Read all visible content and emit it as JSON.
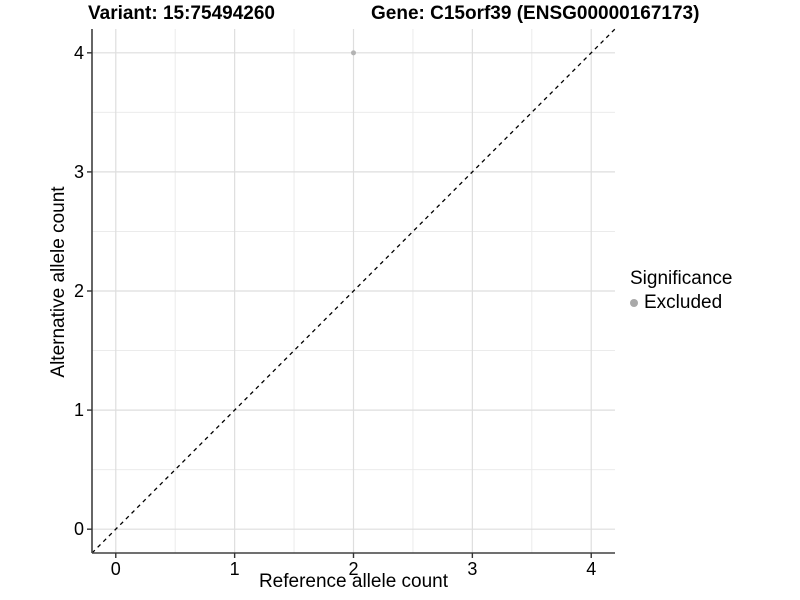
{
  "chart_data": {
    "type": "scatter",
    "title_left": "Variant: 15:75494260",
    "title_right": "Gene: C15orf39 (ENSG00000167173)",
    "xlabel": "Reference allele count",
    "ylabel": "Alternative allele count",
    "xlim": [
      -0.2,
      4.2
    ],
    "ylim": [
      -0.2,
      4.2
    ],
    "x_ticks": [
      0,
      1,
      2,
      3,
      4
    ],
    "y_ticks": [
      0,
      1,
      2,
      3,
      4
    ],
    "minor_grid_step": 0.5,
    "grid": true,
    "legend_position": "right",
    "identity_line": {
      "style": "dashed",
      "slope": 1,
      "intercept": 0,
      "color": "#000000"
    },
    "points": [
      {
        "x": 2,
        "y": 4,
        "significance": "Excluded",
        "color": "#b3b3b3",
        "radius": 2.5
      }
    ],
    "legend": {
      "title": "Significance",
      "items": [
        {
          "label": "Excluded",
          "color": "#a9a9a9"
        }
      ]
    },
    "colors": {
      "grid_major": "#dedede",
      "grid_minor": "#ebebeb",
      "axis_line": "#404040",
      "tick_mark": "#333333",
      "text": "#000000",
      "panel_background": "#ffffff"
    }
  }
}
